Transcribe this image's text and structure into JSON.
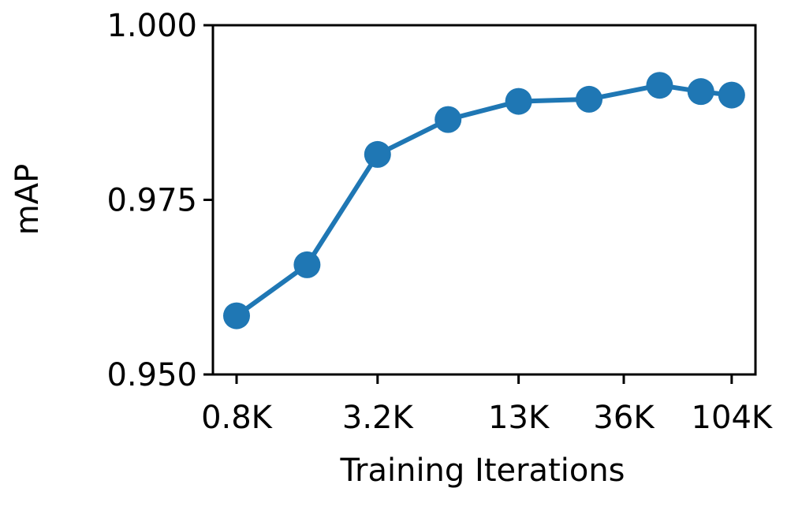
{
  "chart_data": {
    "type": "line",
    "xlabel": "Training Iterations",
    "ylabel": "mAP",
    "xscale": "log",
    "x": [
      800,
      1600,
      3200,
      6400,
      12800,
      25600,
      51200,
      76800,
      104000
    ],
    "series": [
      {
        "name": "mAP",
        "color": "#1f77b4",
        "values": [
          0.9584,
          0.9657,
          0.9815,
          0.9865,
          0.9891,
          0.9894,
          0.9914,
          0.9905,
          0.99
        ]
      }
    ],
    "xlim": [
      634,
      131400
    ],
    "xticks": [
      {
        "value": 800,
        "label": "0.8K"
      },
      {
        "value": 3200,
        "label": "3.2K"
      },
      {
        "value": 12800,
        "label": "13K"
      },
      {
        "value": 36000,
        "label": "36K"
      },
      {
        "value": 104000,
        "label": "104K"
      }
    ],
    "ylim": [
      0.95,
      1.0
    ],
    "yticks": [
      {
        "value": 0.95,
        "label": "0.950"
      },
      {
        "value": 0.975,
        "label": "0.975"
      },
      {
        "value": 1.0,
        "label": "1.000"
      }
    ],
    "grid": false
  }
}
